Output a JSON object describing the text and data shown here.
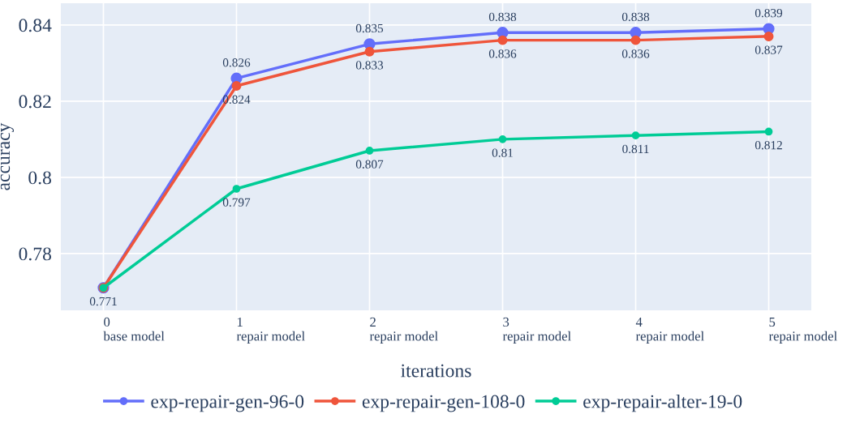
{
  "chart_data": {
    "type": "line",
    "xlabel": "iterations",
    "ylabel": "accuracy",
    "categories": [
      "0\nbase model",
      "1\nrepair model",
      "2\nrepair model",
      "3\nrepair model",
      "4\nrepair model",
      "5\nrepair model"
    ],
    "series": [
      {
        "name": "exp-repair-gen-96-0",
        "color": "#636efa",
        "values": [
          0.771,
          0.826,
          0.835,
          0.838,
          0.838,
          0.839
        ],
        "value_labels": [
          null,
          "0.826",
          "0.835",
          "0.838",
          "0.838",
          "0.839"
        ]
      },
      {
        "name": "exp-repair-gen-108-0",
        "color": "#ef553b",
        "values": [
          0.771,
          0.824,
          0.833,
          0.836,
          0.836,
          0.837
        ],
        "value_labels": [
          null,
          "0.824",
          "0.833",
          "0.836",
          "0.836",
          "0.837"
        ]
      },
      {
        "name": "exp-repair-alter-19-0",
        "color": "#00cc96",
        "values": [
          0.771,
          0.797,
          0.807,
          0.81,
          0.811,
          0.812
        ],
        "value_labels": [
          "0.771",
          "0.797",
          "0.807",
          "0.81",
          "0.811",
          "0.812"
        ]
      }
    ],
    "ylim": [
      0.7651,
      0.8457
    ],
    "yticks": [
      0.78,
      0.8,
      0.82,
      0.84
    ],
    "grid": true,
    "legend": "bottom",
    "marker": "circle",
    "line_style": "solid"
  }
}
